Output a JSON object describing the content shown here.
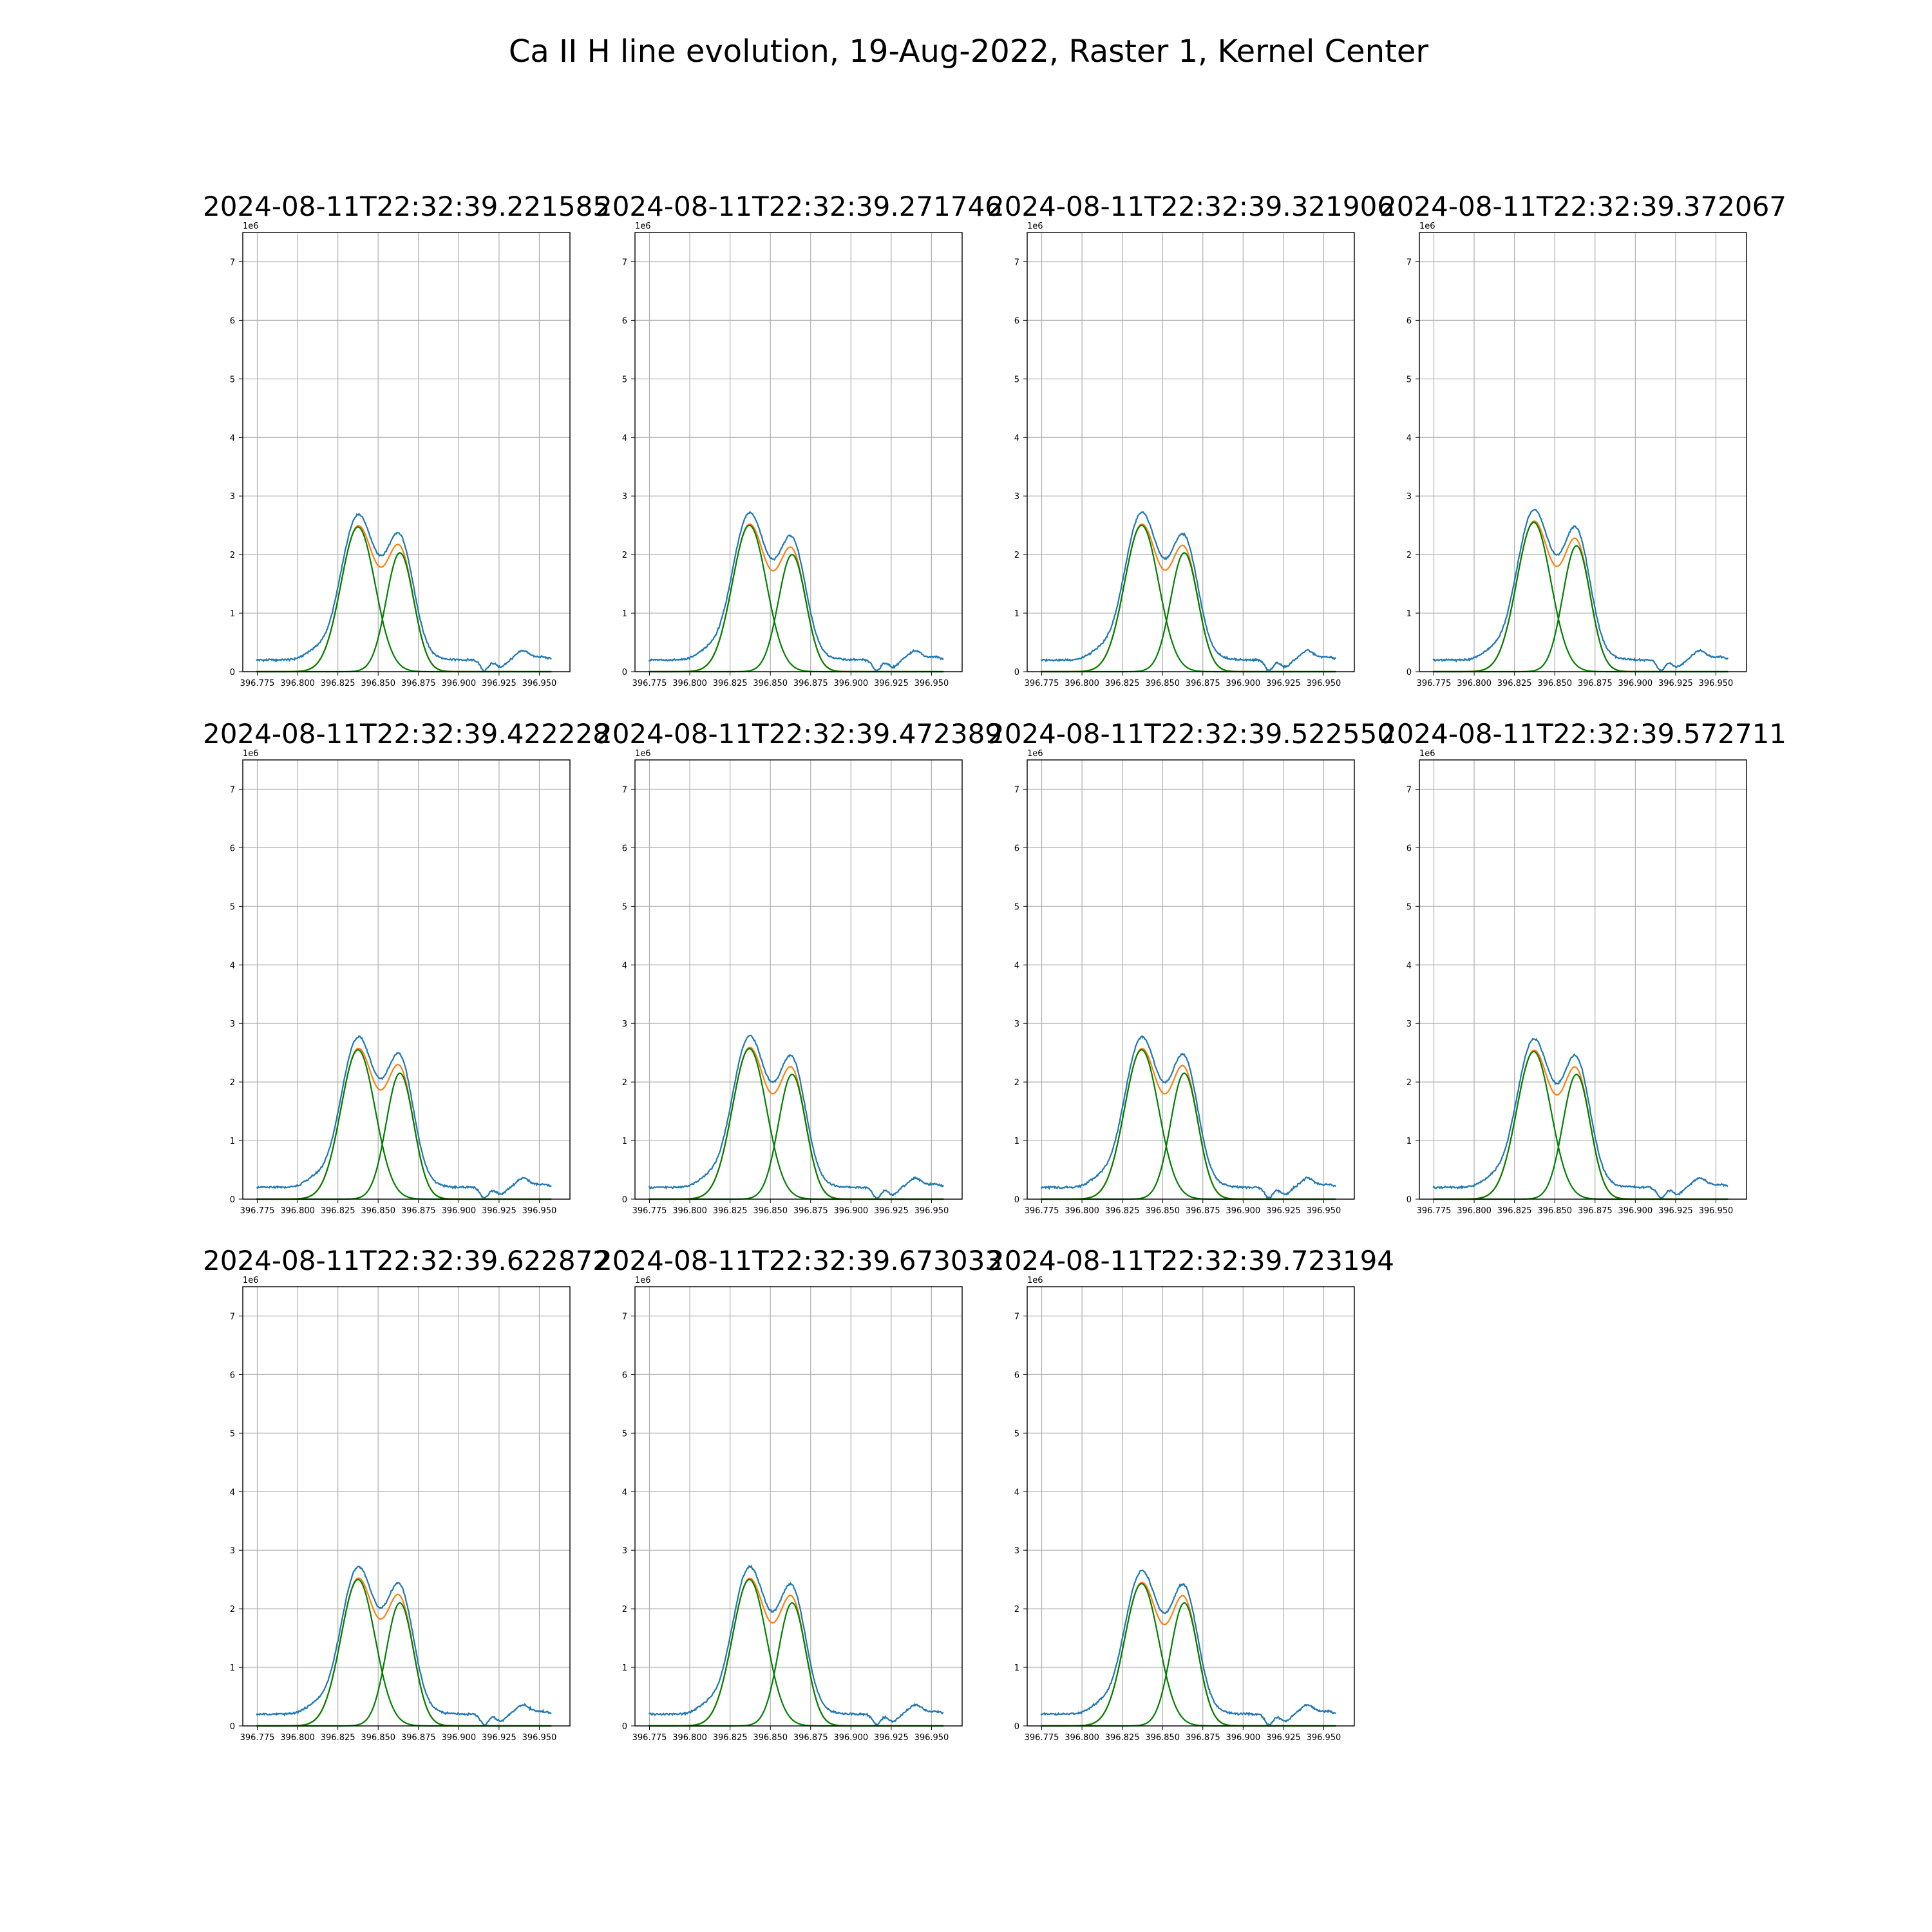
{
  "figure": {
    "title": "Ca II H line evolution, 19-Aug-2022, Raster 1, Kernel Center"
  },
  "chart_data": {
    "type": "line",
    "x_offset_label": "",
    "y_offset_label": "1e6",
    "xlim": [
      396.766,
      396.969
    ],
    "ylim": [
      0,
      7.5
    ],
    "y_scale_note": "values in units of 1e6",
    "xticks": [
      "396.775",
      "396.800",
      "396.825",
      "396.850",
      "396.875",
      "396.900",
      "396.925",
      "396.950"
    ],
    "yticks": [
      "0",
      "1",
      "2",
      "3",
      "4",
      "5",
      "6",
      "7"
    ],
    "grid": true,
    "series_colors": {
      "observed": "#1f77b4",
      "fit": "#ff7f0e",
      "components": "#008000"
    },
    "panels": [
      {
        "title": "2024-08-11T22:32:39.221585",
        "g1": {
          "amp": 2.47,
          "center": 396.8375,
          "sigma": 0.0106
        },
        "g2": {
          "amp": 2.03,
          "center": 396.8635,
          "sigma": 0.0085
        },
        "peak_obs": 2.7
      },
      {
        "title": "2024-08-11T22:32:39.271746",
        "g1": {
          "amp": 2.5,
          "center": 396.837,
          "sigma": 0.0106
        },
        "g2": {
          "amp": 2.0,
          "center": 396.8635,
          "sigma": 0.0085
        },
        "peak_obs": 2.75
      },
      {
        "title": "2024-08-11T22:32:39.321906",
        "g1": {
          "amp": 2.5,
          "center": 396.837,
          "sigma": 0.0106
        },
        "g2": {
          "amp": 2.03,
          "center": 396.8635,
          "sigma": 0.0085
        },
        "peak_obs": 2.73
      },
      {
        "title": "2024-08-11T22:32:39.372067",
        "g1": {
          "amp": 2.55,
          "center": 396.837,
          "sigma": 0.0106
        },
        "g2": {
          "amp": 2.15,
          "center": 396.8635,
          "sigma": 0.0085
        },
        "peak_obs": 2.8
      },
      {
        "title": "2024-08-11T22:32:39.422228",
        "g1": {
          "amp": 2.55,
          "center": 396.8375,
          "sigma": 0.0106
        },
        "g2": {
          "amp": 2.15,
          "center": 396.8635,
          "sigma": 0.0085
        },
        "peak_obs": 2.83
      },
      {
        "title": "2024-08-11T22:32:39.472389",
        "g1": {
          "amp": 2.57,
          "center": 396.837,
          "sigma": 0.0106
        },
        "g2": {
          "amp": 2.13,
          "center": 396.8635,
          "sigma": 0.0085
        },
        "peak_obs": 2.82
      },
      {
        "title": "2024-08-11T22:32:39.522550",
        "g1": {
          "amp": 2.55,
          "center": 396.837,
          "sigma": 0.0106
        },
        "g2": {
          "amp": 2.15,
          "center": 396.8635,
          "sigma": 0.0085
        },
        "peak_obs": 2.8
      },
      {
        "title": "2024-08-11T22:32:39.572711",
        "g1": {
          "amp": 2.52,
          "center": 396.837,
          "sigma": 0.0106
        },
        "g2": {
          "amp": 2.13,
          "center": 396.8635,
          "sigma": 0.0085
        },
        "peak_obs": 2.8
      },
      {
        "title": "2024-08-11T22:32:39.622872",
        "g1": {
          "amp": 2.5,
          "center": 396.8375,
          "sigma": 0.0106
        },
        "g2": {
          "amp": 2.1,
          "center": 396.8635,
          "sigma": 0.0085
        },
        "peak_obs": 2.8
      },
      {
        "title": "2024-08-11T22:32:39.673033",
        "g1": {
          "amp": 2.5,
          "center": 396.837,
          "sigma": 0.0106
        },
        "g2": {
          "amp": 2.1,
          "center": 396.8635,
          "sigma": 0.0085
        },
        "peak_obs": 2.78
      },
      {
        "title": "2024-08-11T22:32:39.723194",
        "g1": {
          "amp": 2.43,
          "center": 396.837,
          "sigma": 0.0106
        },
        "g2": {
          "amp": 2.1,
          "center": 396.8635,
          "sigma": 0.0085
        },
        "peak_obs": 2.72
      }
    ]
  }
}
